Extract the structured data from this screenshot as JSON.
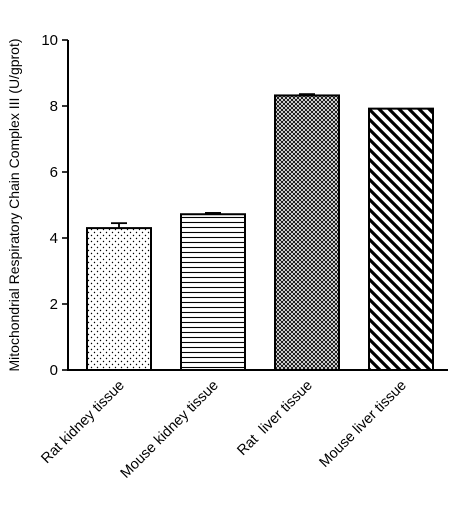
{
  "chart_data": {
    "type": "bar",
    "title": "",
    "xlabel": "",
    "ylabel": "Mitochondrial Respiratory Chain Complex III (U/gprot)",
    "ylim": [
      0,
      10
    ],
    "yticks": [
      "0",
      "2",
      "4",
      "6",
      "8",
      "10"
    ],
    "categories": [
      "Rat kidney tissue",
      "Mouse kidney tissue",
      "Rat  liver tissue",
      "Mouse liver tissue"
    ],
    "values": [
      4.3,
      4.72,
      8.32,
      7.92
    ],
    "errors": [
      0.15,
      0.04,
      0.04,
      0.0
    ],
    "patterns": [
      "dots",
      "horizontal-lines",
      "crosshatch",
      "diagonal-stripes"
    ],
    "grid": false,
    "legend": "none",
    "colors": {
      "bar_fill": "#ffffff",
      "stroke": "#000000"
    }
  }
}
